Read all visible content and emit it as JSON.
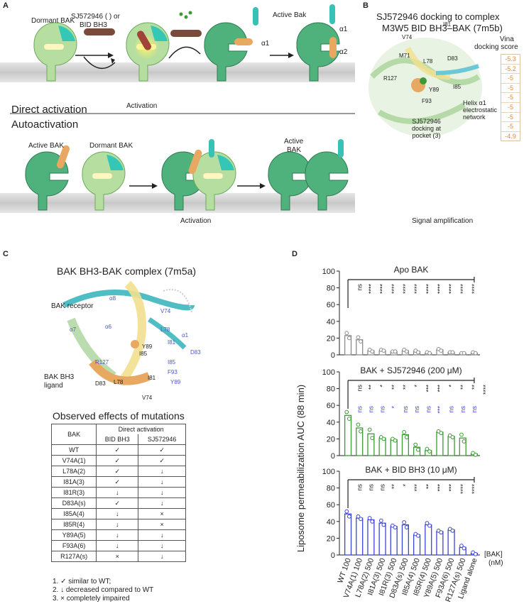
{
  "panel_a": {
    "label": "A",
    "reagent": "SJ572946 (  ) or",
    "reagent2": "BID BH3",
    "dormant": "Dormant BAK",
    "activation1": "Activation",
    "active_bak_top": "Active Bak",
    "alpha1_a": "α1",
    "alpha1_b": "α1",
    "alpha2": "α2",
    "direct_activation": "Direct activation",
    "autoactivation": "Autoactivation",
    "active_bak_left": "Active BAK",
    "dormant_bak_2": "Dormant BAK",
    "active_bak_mid": "Active",
    "active_bak_mid2": "BAK",
    "activation2": "Activation",
    "signal": "Signal amplification"
  },
  "panel_b": {
    "label": "B",
    "title1": "SJ572946 docking to complex",
    "title2": "M3W5 BID BH3–BAK (7m5b)",
    "residues": [
      "V74",
      "I81",
      "M71",
      "D83",
      "L78",
      "I85",
      "R127",
      "Y89",
      "F93"
    ],
    "docking_label": [
      "SJ572946",
      "docking at",
      "pocket (3)"
    ],
    "helix_label": [
      "Helix α1",
      "electrostatic",
      "network"
    ],
    "vina_title1": "Vina",
    "vina_title2": "docking score",
    "vina_scores": [
      "-5.3",
      "-5.2",
      "-5",
      "-5",
      "-5",
      "-5",
      "-5",
      "-5",
      "-4.9"
    ]
  },
  "panel_c": {
    "label": "C",
    "title": "BAK BH3-BAK complex (7m5a)",
    "receptor": "BAK receptor",
    "ligand1": "BAK BH3",
    "ligand2": "ligand",
    "helices": [
      "α8",
      "α7",
      "α6",
      "α1"
    ],
    "residues_blue": [
      "V74",
      "L78",
      "I81",
      "D83",
      "I85",
      "R127",
      "F93",
      "Y89"
    ],
    "residues_black": [
      "Y89",
      "I85",
      "D83",
      "L78",
      "I81",
      "V74"
    ],
    "table_title": "Observed effects of mutations",
    "col_bak": "BAK",
    "col_direct": "Direct activation",
    "col_bid": "BID BH3",
    "col_sj": "SJ572946",
    "rows": [
      {
        "bak": "WT",
        "bid": "✓",
        "sj": "✓"
      },
      {
        "bak": "V74A(1)",
        "bid": "✓",
        "sj": "✓"
      },
      {
        "bak": "L78A(2)",
        "bid": "✓",
        "sj": "↓"
      },
      {
        "bak": "I81A(3)",
        "bid": "✓",
        "sj": "↓"
      },
      {
        "bak": "I81R(3)",
        "bid": "↓",
        "sj": "↓"
      },
      {
        "bak": "D83A(s)",
        "bid": "✓",
        "sj": "↓"
      },
      {
        "bak": "I85A(4)",
        "bid": "↓",
        "sj": "×"
      },
      {
        "bak": "I85R(4)",
        "bid": "↓",
        "sj": "×"
      },
      {
        "bak": "Y89A(5)",
        "bid": "↓",
        "sj": "↓"
      },
      {
        "bak": "F93A(6)",
        "bid": "↓",
        "sj": "↓"
      },
      {
        "bak": "R127A(s)",
        "bid": "×",
        "sj": "↓"
      }
    ],
    "notes": [
      "1.  ✓ similar to WT;",
      "2.  ↓ decreased compared to WT",
      "3.  × completely impaired"
    ]
  },
  "chart_data": {
    "type": "bar",
    "panel_label": "D",
    "ylabel": "Liposome permeabilization AUC (88 min)",
    "xlabel": "[BAK] (nM)",
    "ylim": [
      0,
      100
    ],
    "yticks": [
      0,
      20,
      40,
      60,
      80,
      100
    ],
    "categories": [
      "WT 100",
      "V74A(1) 100",
      "L78A(2) 500",
      "I81A(3) 500",
      "I81R(3) 500",
      "D83A(s) 500",
      "I85A(4) 500",
      "I85R(4) 500",
      "Y89A(5) 500",
      "F93A(6) 500",
      "R127A(s) 500",
      "Ligand alone"
    ],
    "x_unit_1": "[BAK]",
    "x_unit_2": "(nM)",
    "subplots": [
      {
        "title": "Apo BAK",
        "color": "#8c8c8c",
        "values": [
          23,
          18,
          5,
          5,
          4,
          5,
          4,
          2,
          6,
          3,
          2,
          2
        ],
        "points": [
          [
            26,
            20
          ],
          [
            21,
            16
          ],
          [
            6,
            4
          ],
          [
            6,
            5
          ],
          [
            4,
            4
          ],
          [
            6,
            4
          ],
          [
            5,
            3
          ],
          [
            3,
            2
          ],
          [
            7,
            5
          ],
          [
            3,
            3
          ],
          [
            2,
            2
          ],
          [
            3,
            2
          ]
        ],
        "sig_black": [
          "ns",
          "****",
          "****",
          "****",
          "****",
          "****",
          "****",
          "****",
          "****",
          "****",
          "****"
        ],
        "sig_blue": []
      },
      {
        "title": "BAK + SJ572946 (200 μM)",
        "color": "#3b9a34",
        "values": [
          48,
          33,
          26,
          21,
          19,
          25,
          10,
          6,
          28,
          23,
          21,
          2
        ],
        "points": [
          [
            52,
            44
          ],
          [
            37,
            29
          ],
          [
            31,
            21
          ],
          [
            22,
            20
          ],
          [
            20,
            18
          ],
          [
            28,
            22
          ],
          [
            13,
            7
          ],
          [
            8,
            5
          ],
          [
            29,
            27
          ],
          [
            24,
            22
          ],
          [
            25,
            17
          ],
          [
            3,
            1
          ]
        ],
        "sig_black": [
          "ns",
          "**",
          "*",
          "**",
          "**",
          "*",
          "***",
          "***",
          "*",
          "**",
          "**",
          "****"
        ],
        "sig_blue": [
          "ns",
          "ns",
          "ns",
          "*",
          "ns",
          "ns",
          "ns",
          "***",
          "ns",
          "ns",
          "ns"
        ]
      },
      {
        "title": "BAK + BID BH3 (10 μM)",
        "color": "#3c46d6",
        "values": [
          49,
          44,
          42,
          38,
          34,
          36,
          24,
          36,
          28,
          30,
          9,
          2
        ],
        "points": [
          [
            52,
            46
          ],
          [
            46,
            43
          ],
          [
            44,
            40
          ],
          [
            41,
            36
          ],
          [
            35,
            33
          ],
          [
            39,
            33
          ],
          [
            25,
            23
          ],
          [
            38,
            35
          ],
          [
            29,
            27
          ],
          [
            31,
            29
          ],
          [
            11,
            8
          ],
          [
            3,
            1
          ]
        ],
        "sig_black": [
          "ns",
          "ns",
          "ns",
          "**",
          "*",
          "***",
          "**",
          "***",
          "***",
          "****",
          "****"
        ],
        "sig_blue": []
      }
    ]
  }
}
